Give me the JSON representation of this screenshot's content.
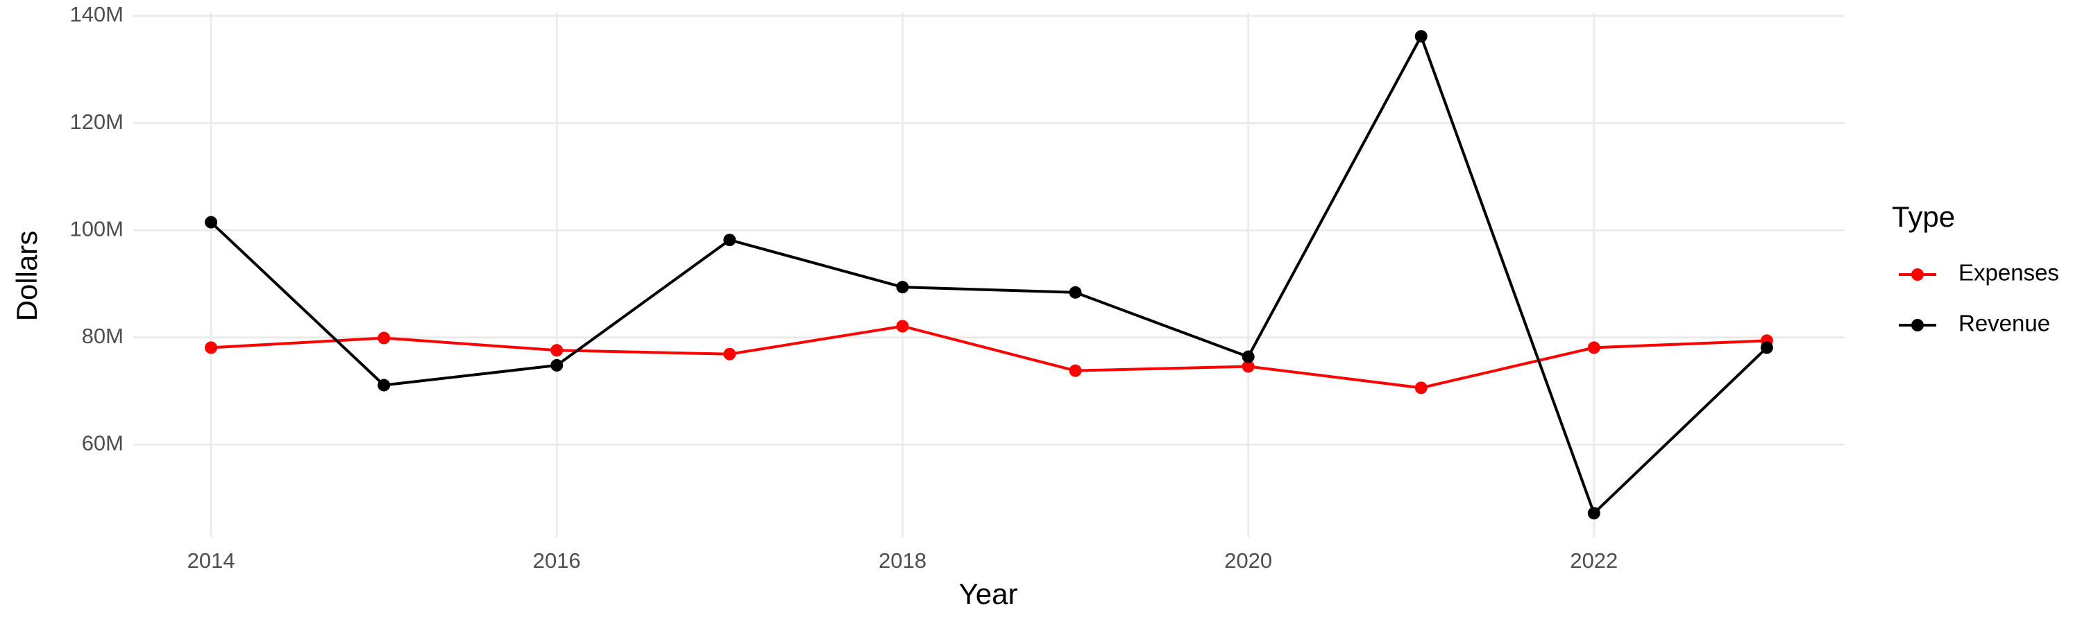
{
  "chart_data": {
    "type": "line",
    "x_label": "Year",
    "y_label": "Dollars",
    "legend_title": "Type",
    "x": [
      2014,
      2015,
      2016,
      2017,
      2018,
      2019,
      2020,
      2021,
      2022,
      2023
    ],
    "series": [
      {
        "name": "Expenses",
        "color": "#ff0000",
        "values": [
          78100000,
          79900000,
          77600000,
          76900000,
          82100000,
          73800000,
          74600000,
          70600000,
          78100000,
          79400000
        ]
      },
      {
        "name": "Revenue",
        "color": "#000000",
        "values": [
          101500000,
          71100000,
          74800000,
          98200000,
          89400000,
          88400000,
          76400000,
          136200000,
          47200000,
          78100000
        ]
      }
    ],
    "xlim": [
      2013.55,
      2023.45
    ],
    "xticks": [
      2014,
      2016,
      2018,
      2020,
      2022
    ],
    "ylim": [
      42700000,
      140650000
    ],
    "yticks": [
      {
        "value": 60000000,
        "label": "60M"
      },
      {
        "value": 80000000,
        "label": "80M"
      },
      {
        "value": 100000000,
        "label": "100M"
      },
      {
        "value": 120000000,
        "label": "120M"
      },
      {
        "value": 140000000,
        "label": "140M"
      }
    ],
    "grid": true,
    "legend_position": "right"
  }
}
